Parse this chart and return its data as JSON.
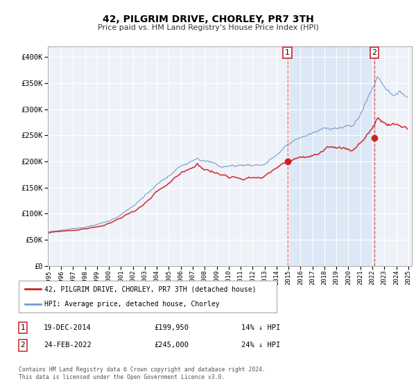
{
  "title": "42, PILGRIM DRIVE, CHORLEY, PR7 3TH",
  "subtitle": "Price paid vs. HM Land Registry's House Price Index (HPI)",
  "background_color": "#ffffff",
  "plot_bg_color": "#eef2f8",
  "highlight_color": "#dce8f5",
  "ylim": [
    0,
    420000
  ],
  "yticks": [
    0,
    50000,
    100000,
    150000,
    200000,
    250000,
    300000,
    350000,
    400000
  ],
  "ytick_labels": [
    "£0",
    "£50K",
    "£100K",
    "£150K",
    "£200K",
    "£250K",
    "£300K",
    "£350K",
    "£400K"
  ],
  "hpi_color": "#7799cc",
  "price_color": "#cc2222",
  "marker1_price": 199950,
  "marker2_price": 245000,
  "legend_label_price": "42, PILGRIM DRIVE, CHORLEY, PR7 3TH (detached house)",
  "legend_label_hpi": "HPI: Average price, detached house, Chorley",
  "note1_date": "19-DEC-2014",
  "note1_price": "£199,950",
  "note1_hpi": "14% ↓ HPI",
  "note2_date": "24-FEB-2022",
  "note2_price": "£245,000",
  "note2_hpi": "24% ↓ HPI",
  "footer": "Contains HM Land Registry data © Crown copyright and database right 2024.\nThis data is licensed under the Open Government Licence v3.0."
}
